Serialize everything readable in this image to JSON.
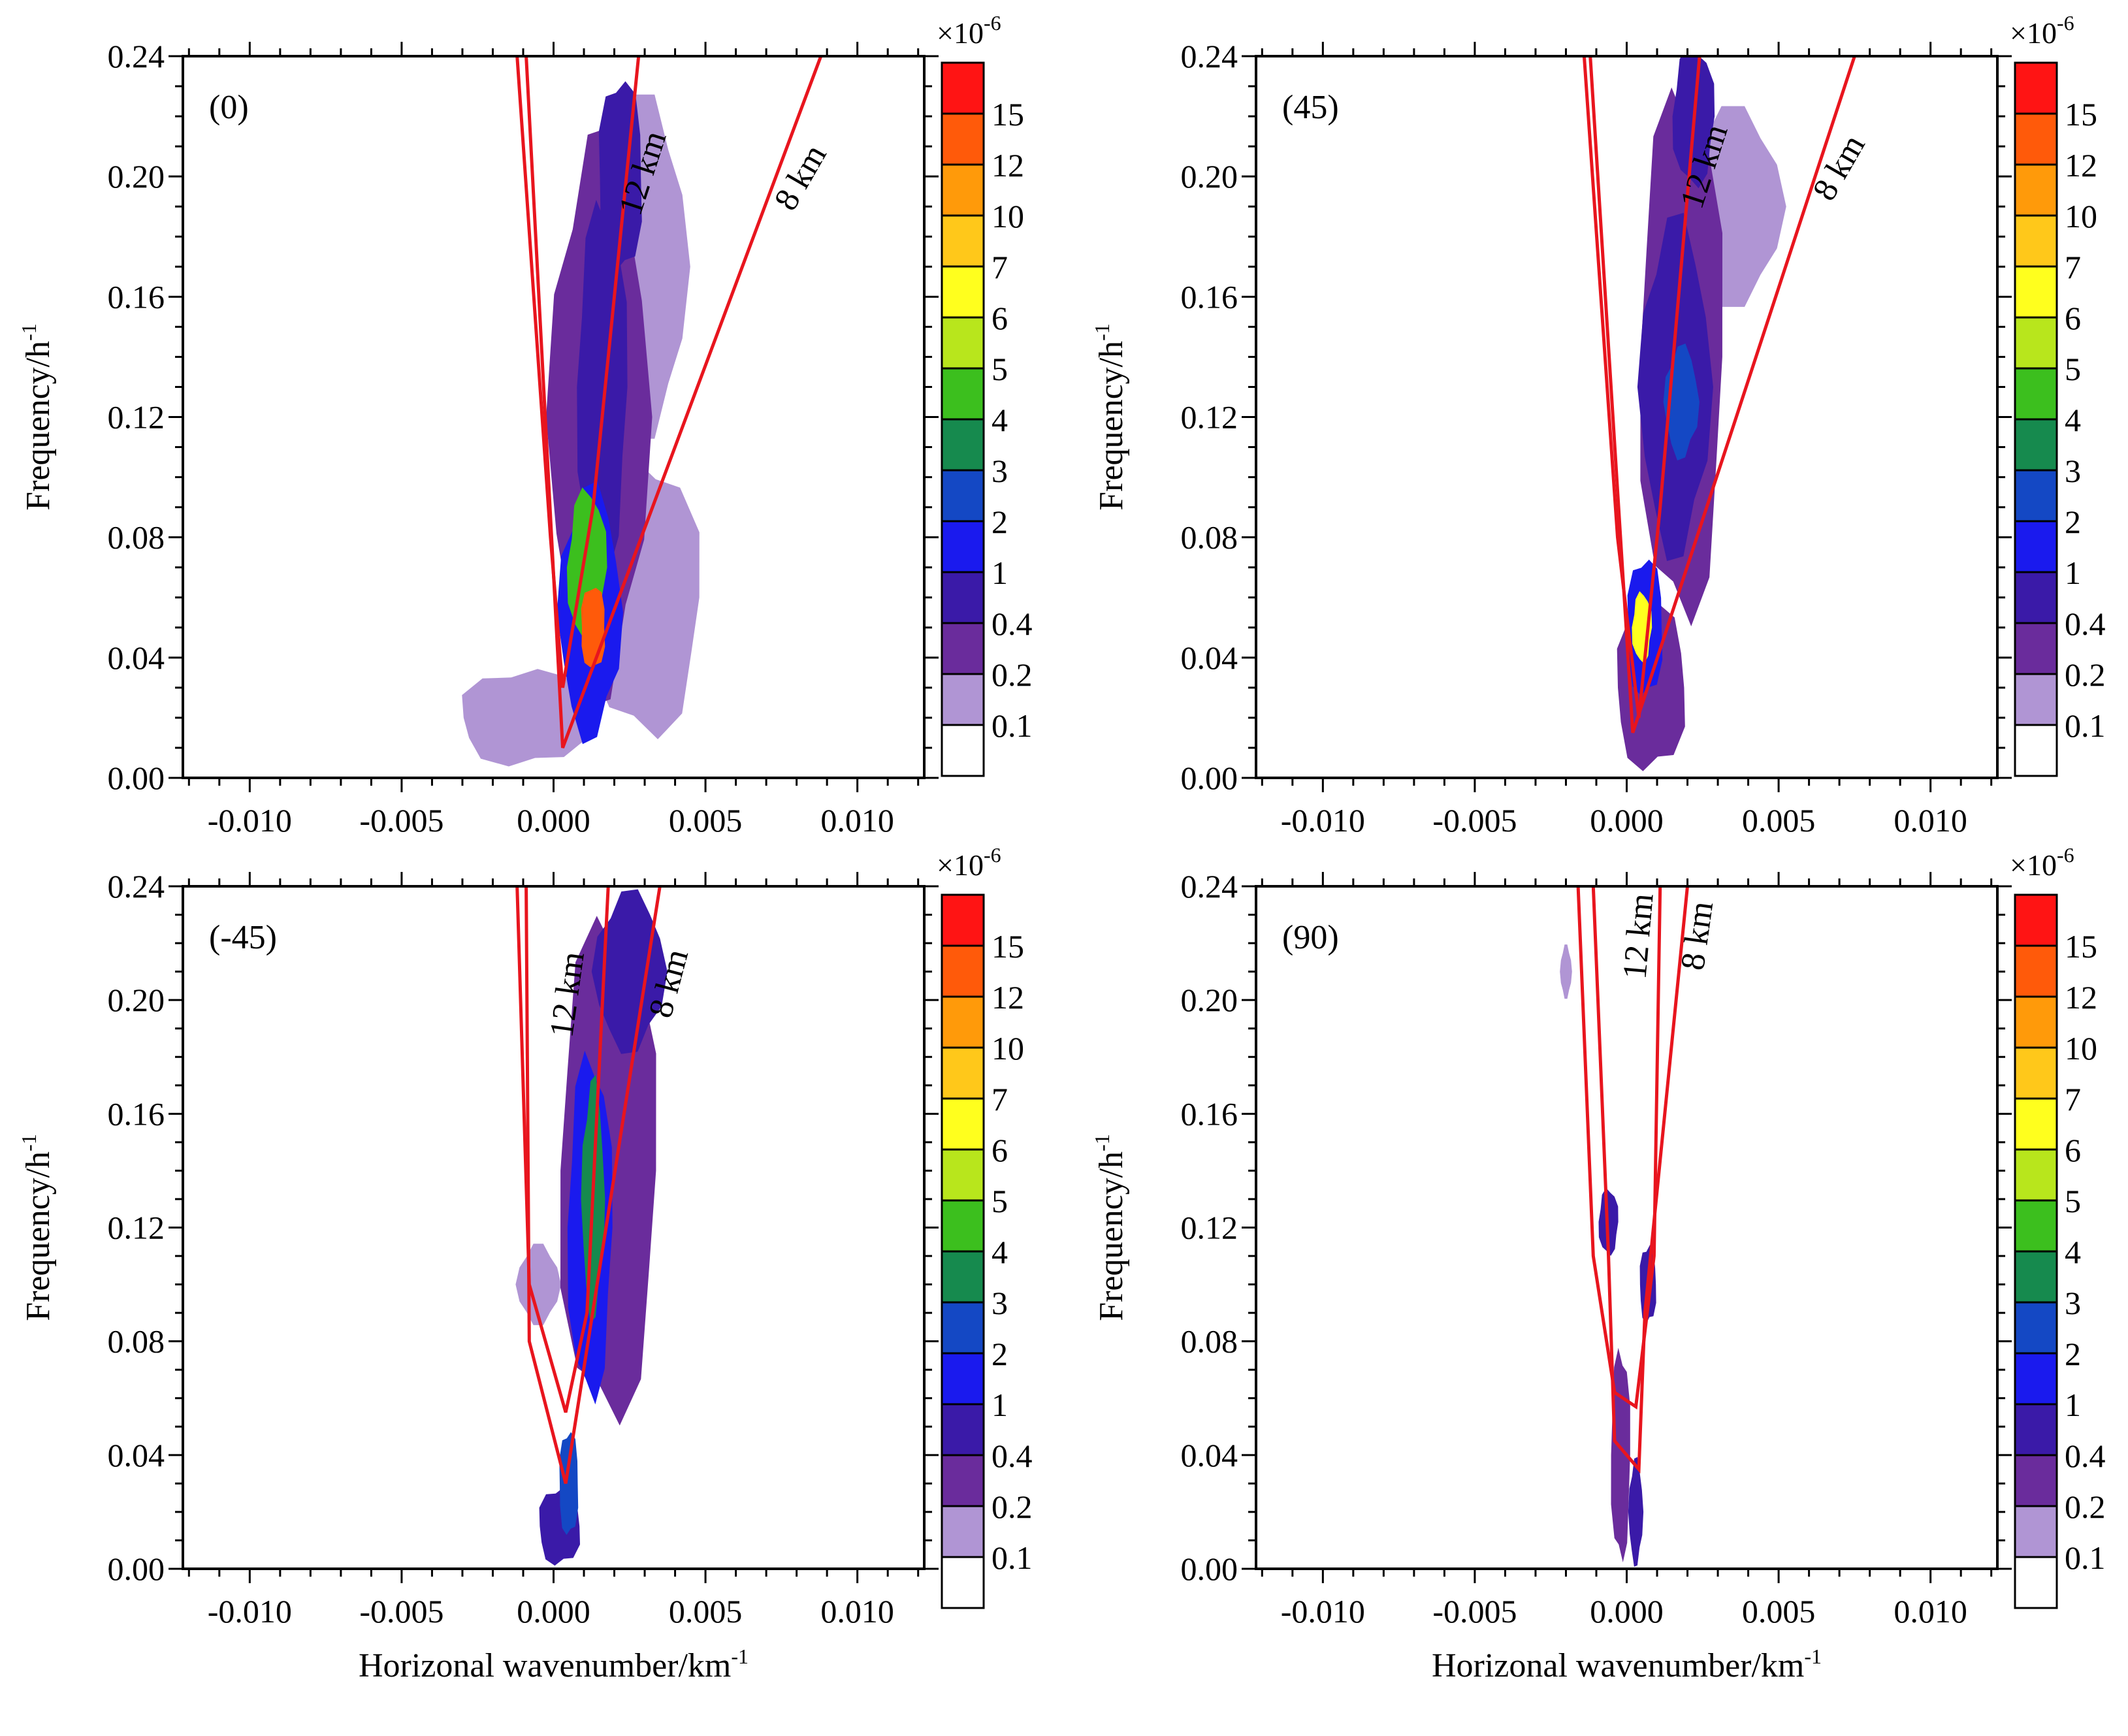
{
  "figure": {
    "x_tick_labels": [
      "-0.010",
      "-0.005",
      "0.000",
      "0.005",
      "0.010"
    ],
    "x_ticks": [
      -0.01,
      -0.005,
      0.0,
      0.005,
      0.01
    ],
    "y_tick_labels": [
      "0.00",
      "0.04",
      "0.08",
      "0.12",
      "0.16",
      "0.20",
      "0.24"
    ],
    "y_ticks": [
      0.0,
      0.04,
      0.08,
      0.12,
      0.16,
      0.2,
      0.24
    ],
    "xlim": [
      -0.0122,
      0.0122
    ],
    "ylim": [
      0.0,
      0.24
    ],
    "xlabel_main": "Horizonal wavenumber/km",
    "xlabel_sup": "-1",
    "ylabel_main": "Frequency/h",
    "ylabel_sup": "-1",
    "colorbar": {
      "scale_main": "×10",
      "scale_sup": "-6",
      "labels": [
        "15",
        "12",
        "10",
        "7",
        "6",
        "5",
        "4",
        "3",
        "2",
        "1",
        "0.4",
        "0.2",
        "0.1"
      ],
      "levels": [
        0.1,
        0.2,
        0.4,
        1,
        2,
        3,
        4,
        5,
        6,
        7,
        10,
        12,
        15
      ],
      "colors": [
        "#ffffff",
        "#b095d4",
        "#6a2c9c",
        "#3a1aa8",
        "#1a1aee",
        "#1448c4",
        "#168a4e",
        "#3cbf1e",
        "#b8e61c",
        "#ffff1e",
        "#ffc81a",
        "#ff9a0a",
        "#ff5a0a",
        "#ff1414"
      ]
    },
    "line_color": "#e8151e"
  },
  "chart_data": [
    {
      "type": "heatmap",
      "panel_label": "(0)",
      "line_labels": [
        "12 km",
        "8 km"
      ],
      "xlim": [
        -0.0122,
        0.0122
      ],
      "ylim": [
        0.0,
        0.24
      ],
      "blobs": [
        {
          "x": 0.0013,
          "y": 0.05,
          "w": 0.0009,
          "h": 0.03,
          "v": 12
        },
        {
          "x": 0.0011,
          "y": 0.07,
          "w": 0.0014,
          "h": 0.055,
          "v": 4.5
        },
        {
          "x": 0.0012,
          "y": 0.055,
          "w": 0.0022,
          "h": 0.09,
          "v": 1.5
        },
        {
          "x": 0.0016,
          "y": 0.13,
          "w": 0.0018,
          "h": 0.13,
          "v": 0.8
        },
        {
          "x": 0.0022,
          "y": 0.2,
          "w": 0.0016,
          "h": 0.07,
          "v": 0.9
        },
        {
          "x": 0.0015,
          "y": 0.12,
          "w": 0.0035,
          "h": 0.2,
          "v": 0.25
        },
        {
          "x": 0.003,
          "y": 0.17,
          "w": 0.003,
          "h": 0.12,
          "v": 0.12
        },
        {
          "x": -0.001,
          "y": 0.02,
          "w": 0.0045,
          "h": 0.035,
          "v": 0.18
        },
        {
          "x": 0.003,
          "y": 0.06,
          "w": 0.004,
          "h": 0.1,
          "v": 0.13
        }
      ],
      "lines": [
        {
          "label": "12 km",
          "points": [
            [
              -0.0012,
              0.24
            ],
            [
              -0.0001,
              0.08
            ],
            [
              0.0003,
              0.03
            ],
            [
              0.0013,
              0.09
            ],
            [
              0.0028,
              0.24
            ]
          ]
        },
        {
          "label": "8 km",
          "points": [
            [
              -0.0009,
              0.24
            ],
            [
              0.0003,
              0.01
            ],
            [
              0.0088,
              0.24
            ]
          ]
        }
      ]
    },
    {
      "type": "heatmap",
      "panel_label": "(45)",
      "line_labels": [
        "12 km",
        "8 km"
      ],
      "xlim": [
        -0.0122,
        0.0122
      ],
      "ylim": [
        0.0,
        0.24
      ],
      "blobs": [
        {
          "x": 0.0005,
          "y": 0.05,
          "w": 0.0007,
          "h": 0.025,
          "v": 6
        },
        {
          "x": 0.0006,
          "y": 0.05,
          "w": 0.0013,
          "h": 0.05,
          "v": 1.2
        },
        {
          "x": 0.0018,
          "y": 0.125,
          "w": 0.0012,
          "h": 0.04,
          "v": 2
        },
        {
          "x": 0.0016,
          "y": 0.13,
          "w": 0.0025,
          "h": 0.12,
          "v": 0.6
        },
        {
          "x": 0.0022,
          "y": 0.22,
          "w": 0.0015,
          "h": 0.05,
          "v": 0.9
        },
        {
          "x": 0.0018,
          "y": 0.14,
          "w": 0.003,
          "h": 0.19,
          "v": 0.25
        },
        {
          "x": 0.0035,
          "y": 0.19,
          "w": 0.0035,
          "h": 0.07,
          "v": 0.13
        },
        {
          "x": 0.0008,
          "y": 0.03,
          "w": 0.0025,
          "h": 0.06,
          "v": 0.25
        }
      ],
      "lines": [
        {
          "label": "12 km",
          "points": [
            [
              -0.0014,
              0.24
            ],
            [
              -0.0003,
              0.08
            ],
            [
              0.0004,
              0.02
            ],
            [
              0.0011,
              0.09
            ],
            [
              0.0024,
              0.24
            ]
          ]
        },
        {
          "label": "8 km",
          "points": [
            [
              -0.0012,
              0.24
            ],
            [
              0.0002,
              0.015
            ],
            [
              0.0075,
              0.24
            ]
          ]
        }
      ]
    },
    {
      "type": "heatmap",
      "panel_label": "(-45)",
      "line_labels": [
        "12 km",
        "8 km"
      ],
      "xlim": [
        -0.0122,
        0.0122
      ],
      "ylim": [
        0.0,
        0.24
      ],
      "blobs": [
        {
          "x": 0.0013,
          "y": 0.13,
          "w": 0.0008,
          "h": 0.09,
          "v": 3.5
        },
        {
          "x": 0.0012,
          "y": 0.12,
          "w": 0.0016,
          "h": 0.13,
          "v": 1.2
        },
        {
          "x": 0.0005,
          "y": 0.03,
          "w": 0.0007,
          "h": 0.04,
          "v": 2
        },
        {
          "x": 0.0018,
          "y": 0.14,
          "w": 0.0035,
          "h": 0.19,
          "v": 0.25
        },
        {
          "x": 0.0025,
          "y": 0.21,
          "w": 0.0025,
          "h": 0.06,
          "v": 0.6
        },
        {
          "x": -0.0005,
          "y": 0.1,
          "w": 0.0015,
          "h": 0.03,
          "v": 0.15
        },
        {
          "x": 0.0002,
          "y": 0.015,
          "w": 0.0015,
          "h": 0.03,
          "v": 0.5
        }
      ],
      "lines": [
        {
          "label": "12 km",
          "points": [
            [
              -0.0012,
              0.24
            ],
            [
              -0.0008,
              0.1
            ],
            [
              0.0004,
              0.055
            ],
            [
              0.0011,
              0.09
            ],
            [
              0.0018,
              0.24
            ]
          ]
        },
        {
          "label": "8 km",
          "points": [
            [
              -0.0009,
              0.24
            ],
            [
              -0.0008,
              0.08
            ],
            [
              0.0004,
              0.03
            ],
            [
              0.0035,
              0.24
            ]
          ]
        }
      ]
    },
    {
      "type": "heatmap",
      "panel_label": "(90)",
      "line_labels": [
        "12 km",
        "8 km"
      ],
      "xlim": [
        -0.0122,
        0.0122
      ],
      "ylim": [
        0.0,
        0.24
      ],
      "blobs": [
        {
          "x": -0.0006,
          "y": 0.122,
          "w": 0.0007,
          "h": 0.025,
          "v": 0.6
        },
        {
          "x": 0.0007,
          "y": 0.1,
          "w": 0.0006,
          "h": 0.03,
          "v": 0.5
        },
        {
          "x": -0.0002,
          "y": 0.04,
          "w": 0.0007,
          "h": 0.08,
          "v": 0.25
        },
        {
          "x": 0.0003,
          "y": 0.02,
          "w": 0.0005,
          "h": 0.04,
          "v": 0.5
        },
        {
          "x": -0.002,
          "y": 0.21,
          "w": 0.0004,
          "h": 0.02,
          "v": 0.13
        }
      ],
      "lines": [
        {
          "label": "12 km",
          "points": [
            [
              -0.0016,
              0.24
            ],
            [
              -0.0011,
              0.11
            ],
            [
              -0.0004,
              0.062
            ],
            [
              0.0003,
              0.057
            ],
            [
              0.0009,
              0.11
            ],
            [
              0.0011,
              0.24
            ]
          ]
        },
        {
          "label": "8 km",
          "points": [
            [
              -0.0011,
              0.24
            ],
            [
              -0.0006,
              0.11
            ],
            [
              -0.0004,
              0.045
            ],
            [
              0.0004,
              0.035
            ],
            [
              0.0006,
              0.09
            ],
            [
              0.002,
              0.24
            ]
          ]
        }
      ]
    }
  ]
}
